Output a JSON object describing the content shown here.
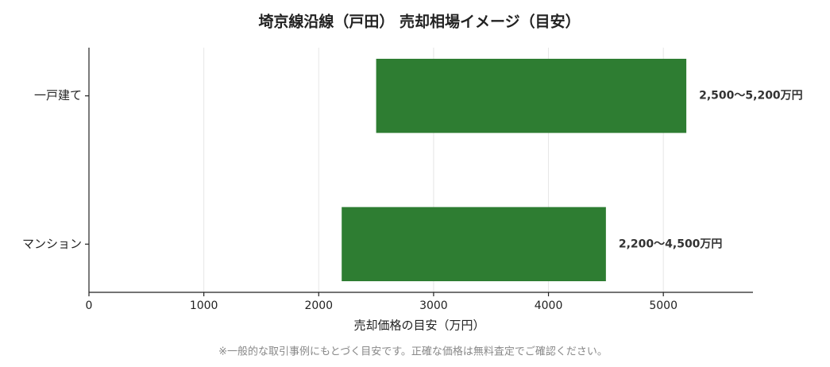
{
  "chart_data": {
    "type": "range-bar",
    "title": "埼京線沿線（戸田） 売却相場イメージ（目安）",
    "categories": [
      "一戸建て",
      "マンション"
    ],
    "values": [
      [
        2500,
        5200
      ],
      [
        2200,
        4500
      ]
    ],
    "value_labels": [
      "2,500～5,200万円",
      "2,200～4,500万円"
    ],
    "color": "#2e7d32",
    "xlabel": "売却価格の目安（万円）",
    "xlim": [
      0,
      5780
    ],
    "xticks": [
      0,
      1000,
      2000,
      3000,
      4000,
      5000
    ],
    "grid": true,
    "footnote": "※一般的な取引事例にもとづく目安です。正確な価格は無料査定でご確認ください。"
  }
}
